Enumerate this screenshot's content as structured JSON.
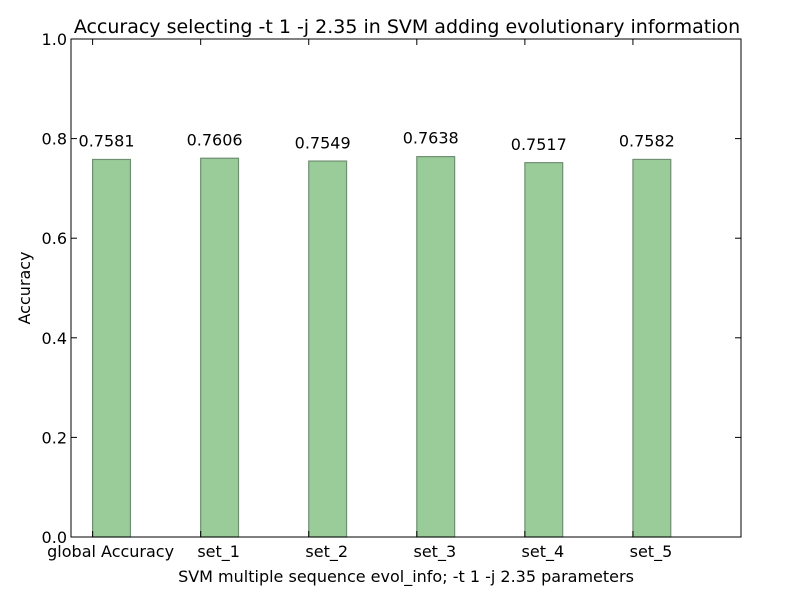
{
  "chart_data": {
    "type": "bar",
    "title": "Accuracy selecting -t 1 -j 2.35 in SVM adding evolutionary information",
    "xlabel": "SVM multiple sequence evol_info; -t 1 -j 2.35 parameters",
    "ylabel": "Accuracy",
    "categories": [
      "global Accuracy",
      "set_1",
      "set_2",
      "set_3",
      "set_4",
      "set_5"
    ],
    "values": [
      0.7581,
      0.7606,
      0.7549,
      0.7638,
      0.7517,
      0.7582
    ],
    "value_labels": [
      "0.7581",
      "0.7606",
      "0.7549",
      "0.7638",
      "0.7517",
      "0.7582"
    ],
    "ylim": [
      0,
      1.0
    ],
    "yticks": [
      0.0,
      0.2,
      0.4,
      0.6,
      0.8,
      1.0
    ],
    "ytick_labels": [
      "0.0",
      "0.2",
      "0.4",
      "0.6",
      "0.8",
      "1.0"
    ],
    "grid": false,
    "colors": {
      "bar_fill": "#99cc99",
      "bar_edge": "#6f8f72",
      "axis": "#000000"
    }
  }
}
